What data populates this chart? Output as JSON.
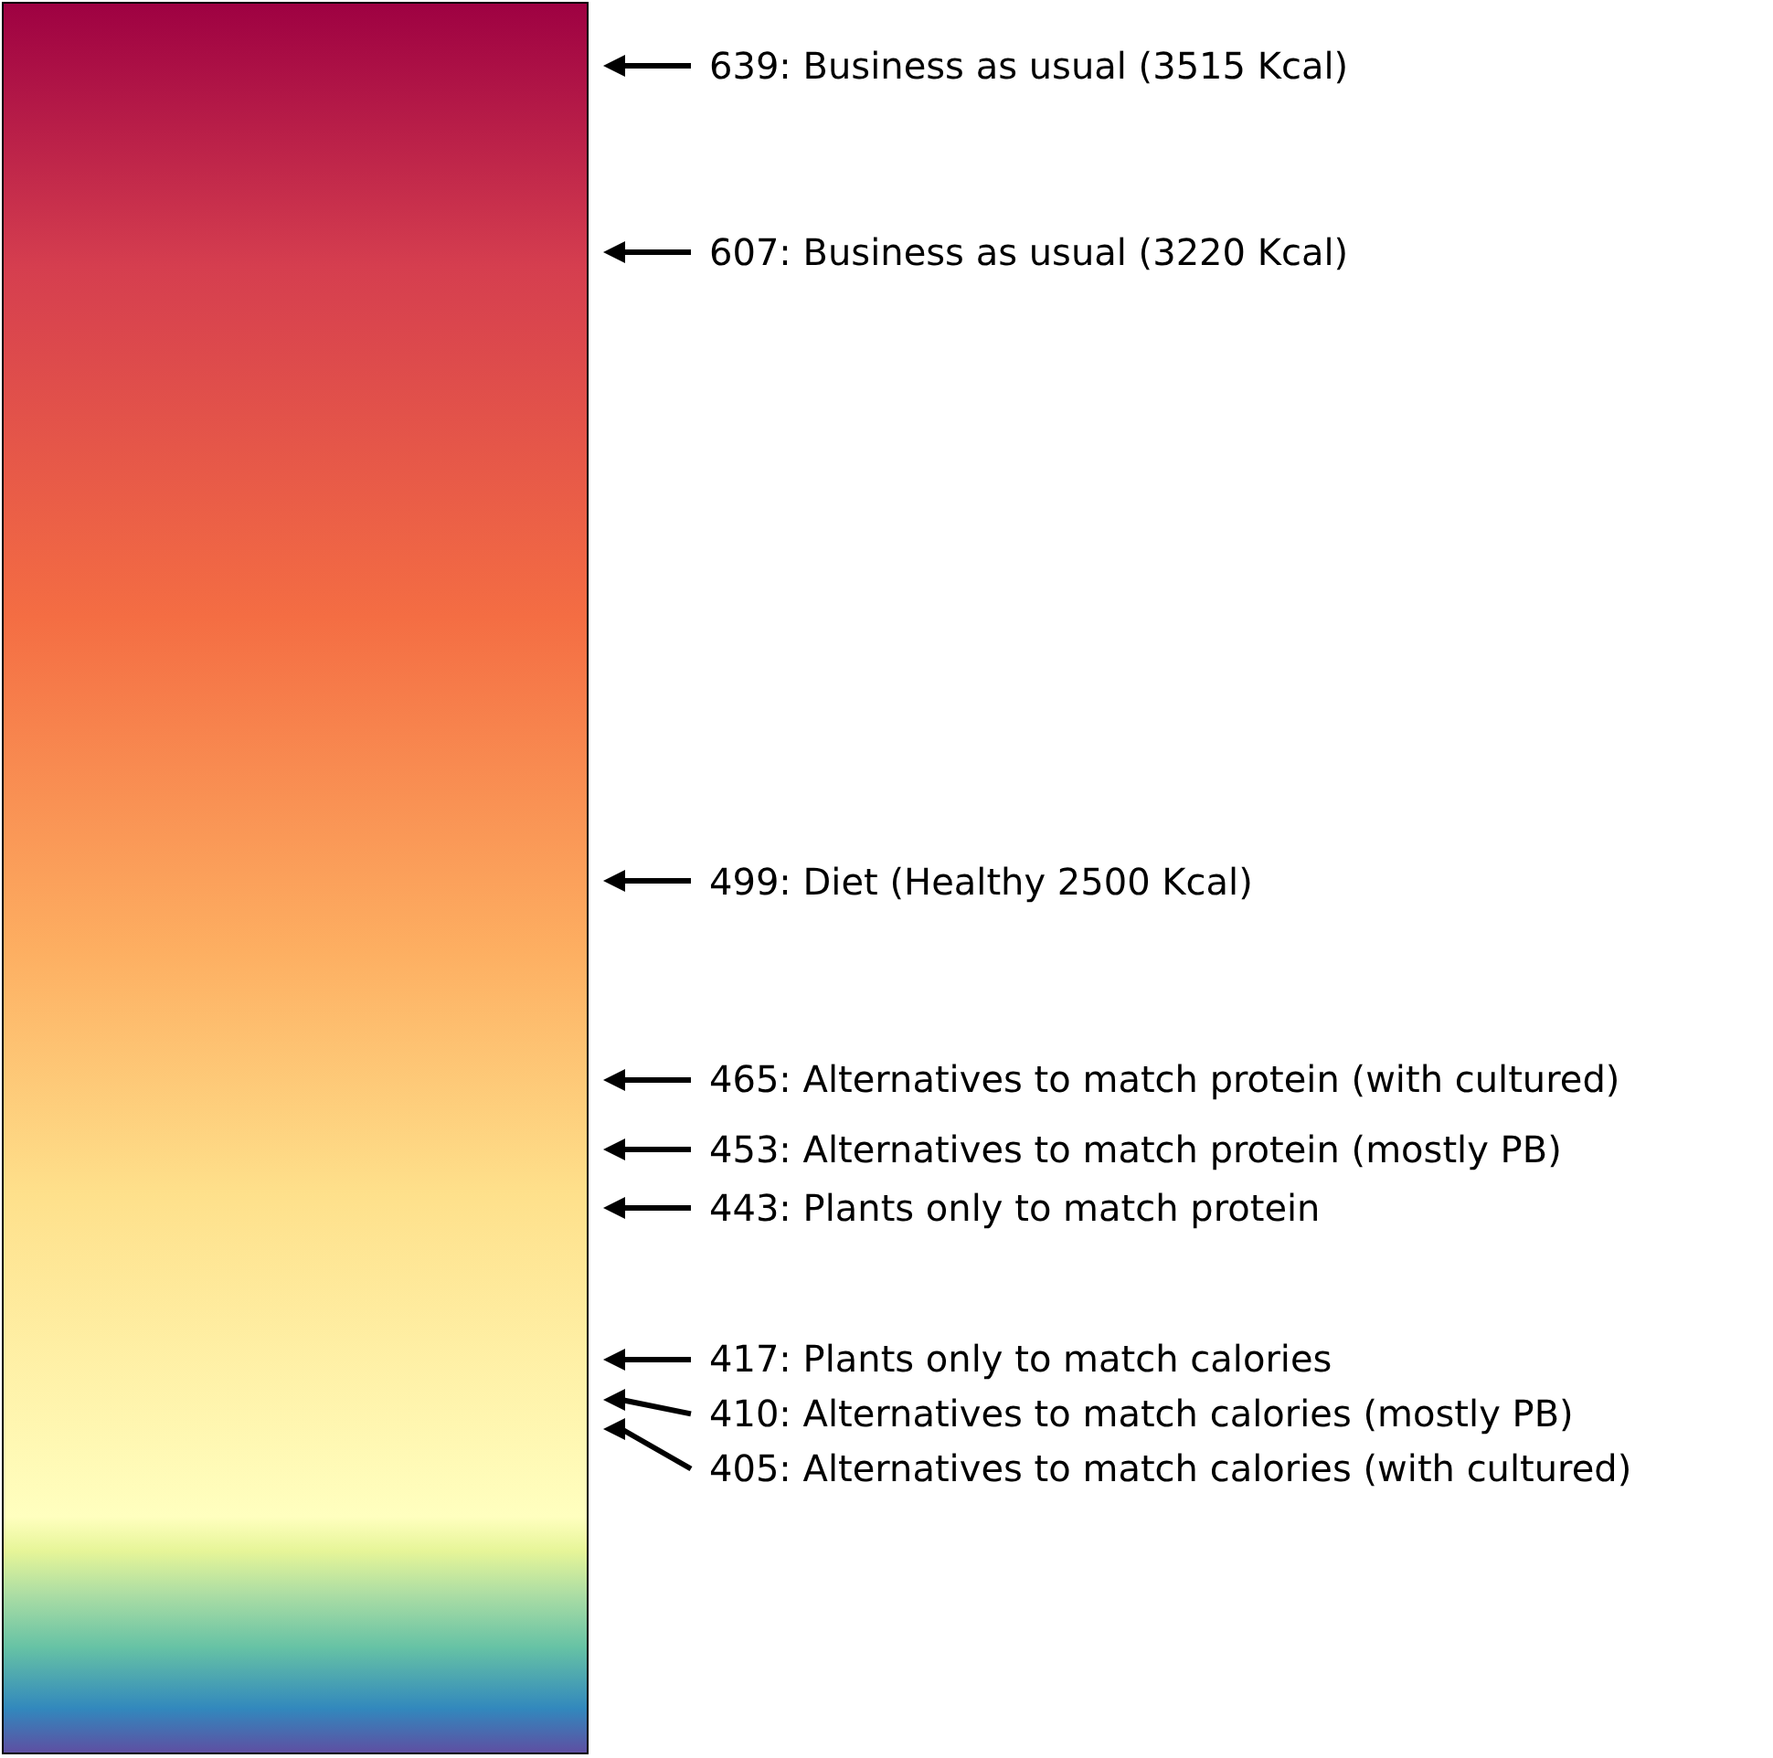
{
  "chart_data": {
    "type": "other",
    "categories": [
      "Business as usual (3515 Kcal)",
      "Business as usual (3220 Kcal)",
      "Diet (Healthy 2500 Kcal)",
      "Alternatives to match protein (with cultured)",
      "Alternatives to match protein (mostly PB)",
      "Plants only to match protein",
      "Plants only to match calories",
      "Alternatives to match calories (mostly PB)",
      "Alternatives to match calories (with cultured)"
    ],
    "values": [
      639,
      607,
      499,
      465,
      453,
      443,
      417,
      410,
      405
    ],
    "value_labels": [
      "639:",
      "607:",
      "499:",
      "465:",
      "453:",
      "443:",
      "417:",
      "410:",
      "405:"
    ]
  }
}
